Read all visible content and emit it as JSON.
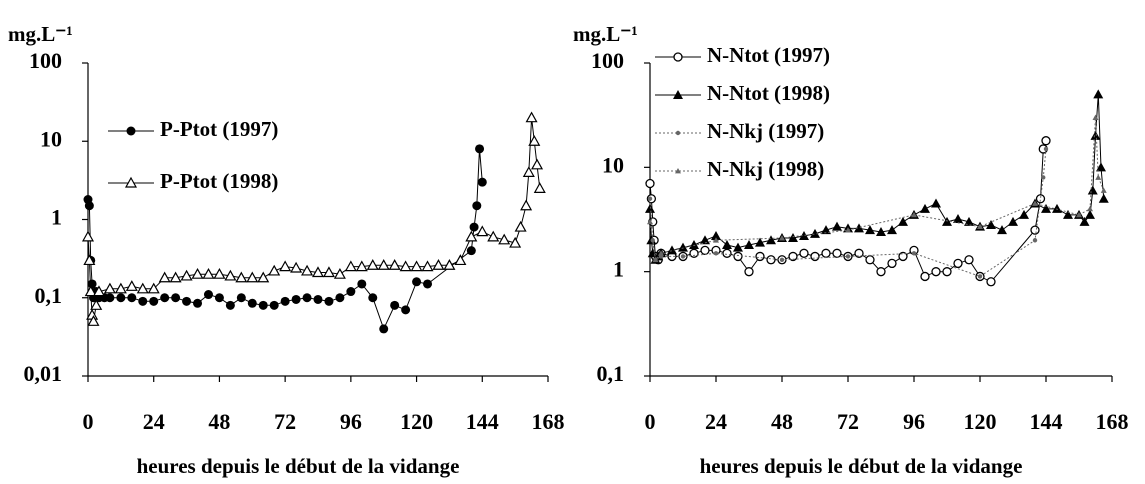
{
  "chart_data": [
    {
      "type": "line",
      "log_y": true,
      "ylabel": "mg.L⁻¹",
      "xlabel": "heures depuis le début de la vidange",
      "xlim": [
        0,
        168
      ],
      "xticks": [
        0,
        24,
        48,
        72,
        96,
        120,
        144,
        168
      ],
      "ylim": [
        0.01,
        100
      ],
      "yticks": [
        {
          "value": 0.01,
          "label": "0,01"
        },
        {
          "value": 0.1,
          "label": "0,1"
        },
        1,
        10,
        100
      ],
      "legend": "center",
      "series": [
        {
          "name": "P-Ptot (1997)",
          "color": "#000000",
          "marker": "circle-filled",
          "line": "solid",
          "x": [
            0,
            0.5,
            1,
            1.5,
            2,
            3,
            4,
            6,
            8,
            12,
            16,
            20,
            24,
            28,
            32,
            36,
            40,
            44,
            48,
            52,
            56,
            60,
            64,
            68,
            72,
            76,
            80,
            84,
            88,
            92,
            96,
            100,
            104,
            108,
            112,
            116,
            120,
            124,
            140,
            141,
            142,
            143,
            144
          ],
          "values": [
            1.8,
            1.5,
            0.3,
            0.15,
            0.1,
            0.12,
            0.1,
            0.1,
            0.1,
            0.1,
            0.1,
            0.09,
            0.09,
            0.1,
            0.1,
            0.09,
            0.085,
            0.11,
            0.1,
            0.08,
            0.1,
            0.085,
            0.08,
            0.08,
            0.09,
            0.095,
            0.1,
            0.095,
            0.09,
            0.1,
            0.12,
            0.15,
            0.1,
            0.04,
            0.08,
            0.07,
            0.16,
            0.15,
            0.4,
            0.8,
            1.5,
            8,
            3
          ]
        },
        {
          "name": "P-Ptot (1998)",
          "color": "#000000",
          "marker": "triangle-open",
          "line": "solid",
          "x": [
            0,
            0.5,
            1,
            1.5,
            2,
            3,
            4,
            8,
            12,
            16,
            20,
            24,
            28,
            32,
            36,
            40,
            44,
            48,
            52,
            56,
            60,
            64,
            68,
            72,
            76,
            80,
            84,
            88,
            92,
            96,
            100,
            104,
            108,
            112,
            116,
            120,
            124,
            128,
            132,
            136,
            140,
            144,
            148,
            152,
            156,
            158,
            160,
            161,
            162,
            163,
            164,
            165
          ],
          "values": [
            0.6,
            0.3,
            0.12,
            0.06,
            0.05,
            0.08,
            0.12,
            0.13,
            0.13,
            0.14,
            0.13,
            0.13,
            0.18,
            0.18,
            0.19,
            0.2,
            0.2,
            0.2,
            0.19,
            0.18,
            0.18,
            0.18,
            0.22,
            0.25,
            0.24,
            0.22,
            0.21,
            0.21,
            0.2,
            0.25,
            0.25,
            0.26,
            0.26,
            0.26,
            0.25,
            0.25,
            0.25,
            0.26,
            0.26,
            0.3,
            0.6,
            0.7,
            0.6,
            0.55,
            0.5,
            0.8,
            1.5,
            4,
            20,
            10,
            5,
            2.5
          ]
        }
      ]
    },
    {
      "type": "line",
      "log_y": true,
      "ylabel": "mg.L⁻¹",
      "xlabel": "heures depuis le début de la vidange",
      "xlim": [
        0,
        168
      ],
      "xticks": [
        0,
        24,
        48,
        72,
        96,
        120,
        144,
        168
      ],
      "ylim": [
        0.1,
        100
      ],
      "yticks": [
        {
          "value": 0.1,
          "label": "0,1"
        },
        1,
        10,
        100
      ],
      "legend": "upper left",
      "series": [
        {
          "name": "N-Ntot (1997)",
          "color": "#000000",
          "marker": "circle-open",
          "line": "solid",
          "x": [
            0,
            0.5,
            1,
            1.5,
            2,
            3,
            4,
            8,
            12,
            16,
            20,
            24,
            28,
            32,
            36,
            40,
            44,
            48,
            52,
            56,
            60,
            64,
            68,
            72,
            76,
            80,
            84,
            88,
            92,
            96,
            100,
            104,
            108,
            112,
            116,
            120,
            124,
            140,
            142,
            143,
            144
          ],
          "values": [
            7,
            5,
            3,
            2,
            1.4,
            1.3,
            1.5,
            1.4,
            1.4,
            1.5,
            1.6,
            1.6,
            1.5,
            1.4,
            1.0,
            1.4,
            1.3,
            1.3,
            1.4,
            1.5,
            1.4,
            1.5,
            1.5,
            1.4,
            1.5,
            1.3,
            1.0,
            1.2,
            1.4,
            1.6,
            0.9,
            1.0,
            1.0,
            1.2,
            1.3,
            0.9,
            0.8,
            2.5,
            5,
            15,
            18
          ]
        },
        {
          "name": "N-Ntot (1998)",
          "color": "#000000",
          "marker": "triangle-filled",
          "line": "solid",
          "x": [
            0,
            0.5,
            1,
            2,
            3,
            4,
            8,
            12,
            16,
            20,
            24,
            28,
            32,
            36,
            40,
            44,
            48,
            52,
            56,
            60,
            64,
            68,
            72,
            76,
            80,
            84,
            88,
            92,
            96,
            100,
            104,
            108,
            112,
            116,
            120,
            124,
            128,
            132,
            136,
            140,
            144,
            148,
            152,
            156,
            158,
            160,
            161,
            162,
            163,
            164,
            165
          ],
          "values": [
            4,
            2,
            1.5,
            1.3,
            1.4,
            1.5,
            1.6,
            1.7,
            1.8,
            2,
            2.2,
            1.8,
            1.7,
            1.8,
            1.9,
            2,
            2.1,
            2.1,
            2.2,
            2.3,
            2.5,
            2.7,
            2.6,
            2.6,
            2.5,
            2.4,
            2.5,
            3,
            3.5,
            4,
            4.5,
            3,
            3.2,
            3,
            2.7,
            2.8,
            2.5,
            3,
            3.5,
            4.5,
            4,
            4,
            3.5,
            3.5,
            3,
            3.5,
            6,
            20,
            50,
            10,
            5
          ]
        },
        {
          "name": "N-Nkj (1997)",
          "color": "#666666",
          "marker": "dot",
          "line": "dotted",
          "x": [
            0,
            1,
            2,
            4,
            12,
            24,
            48,
            72,
            96,
            120,
            140,
            143,
            144
          ],
          "values": [
            5,
            2,
            1.3,
            1.4,
            1.4,
            1.5,
            1.3,
            1.4,
            1.5,
            0.9,
            2,
            8,
            15
          ]
        },
        {
          "name": "N-Nkj (1998)",
          "color": "#666666",
          "marker": "triangle-small",
          "line": "dotted",
          "x": [
            0,
            2,
            4,
            24,
            48,
            72,
            96,
            120,
            140,
            156,
            160,
            162,
            163,
            165
          ],
          "values": [
            3,
            1.3,
            1.5,
            2,
            2.1,
            2.5,
            3.5,
            2.7,
            4.5,
            3.5,
            4,
            30,
            8,
            6
          ]
        }
      ]
    }
  ]
}
